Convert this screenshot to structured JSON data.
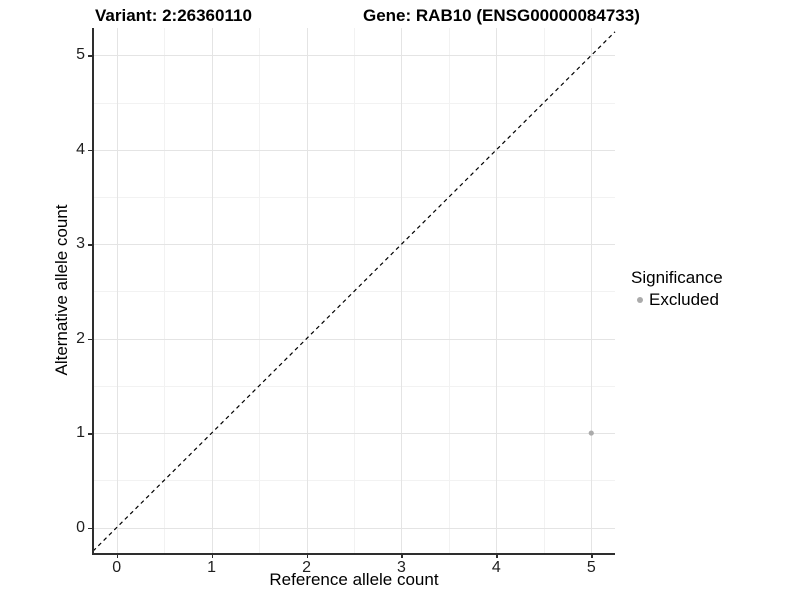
{
  "header": {
    "title_left": "Variant: 2:26360110",
    "title_right": "Gene: RAB10 (ENSG00000084733)"
  },
  "chart_data": {
    "type": "scatter",
    "title": "Variant: 2:26360110    Gene: RAB10 (ENSG00000084733)",
    "xlabel": "Reference allele count",
    "ylabel": "Alternative allele count",
    "xlim": [
      -0.25,
      5.25
    ],
    "ylim": [
      -0.27,
      5.29
    ],
    "xticks": [
      0,
      1,
      2,
      3,
      4,
      5
    ],
    "yticks": [
      0,
      1,
      2,
      3,
      4,
      5
    ],
    "minor_step": 0.5,
    "grid": true,
    "series": [
      {
        "name": "Excluded",
        "points": [
          {
            "x": 5,
            "y": 1
          }
        ],
        "color": "#ababab"
      }
    ],
    "reference_line": {
      "kind": "identity",
      "slope": 1,
      "intercept": 0,
      "style": "dashed",
      "color": "#000000"
    },
    "legend": {
      "title": "Significance",
      "position": "right",
      "entries": [
        {
          "label": "Excluded",
          "color": "#ababab"
        }
      ]
    },
    "colors": {
      "grid_major": "#e4e4e4",
      "grid_minor": "#f2f2f2",
      "axis_line": "#2e2e2e",
      "tick_label": "#1f1f1f",
      "point": "#ababab"
    }
  }
}
